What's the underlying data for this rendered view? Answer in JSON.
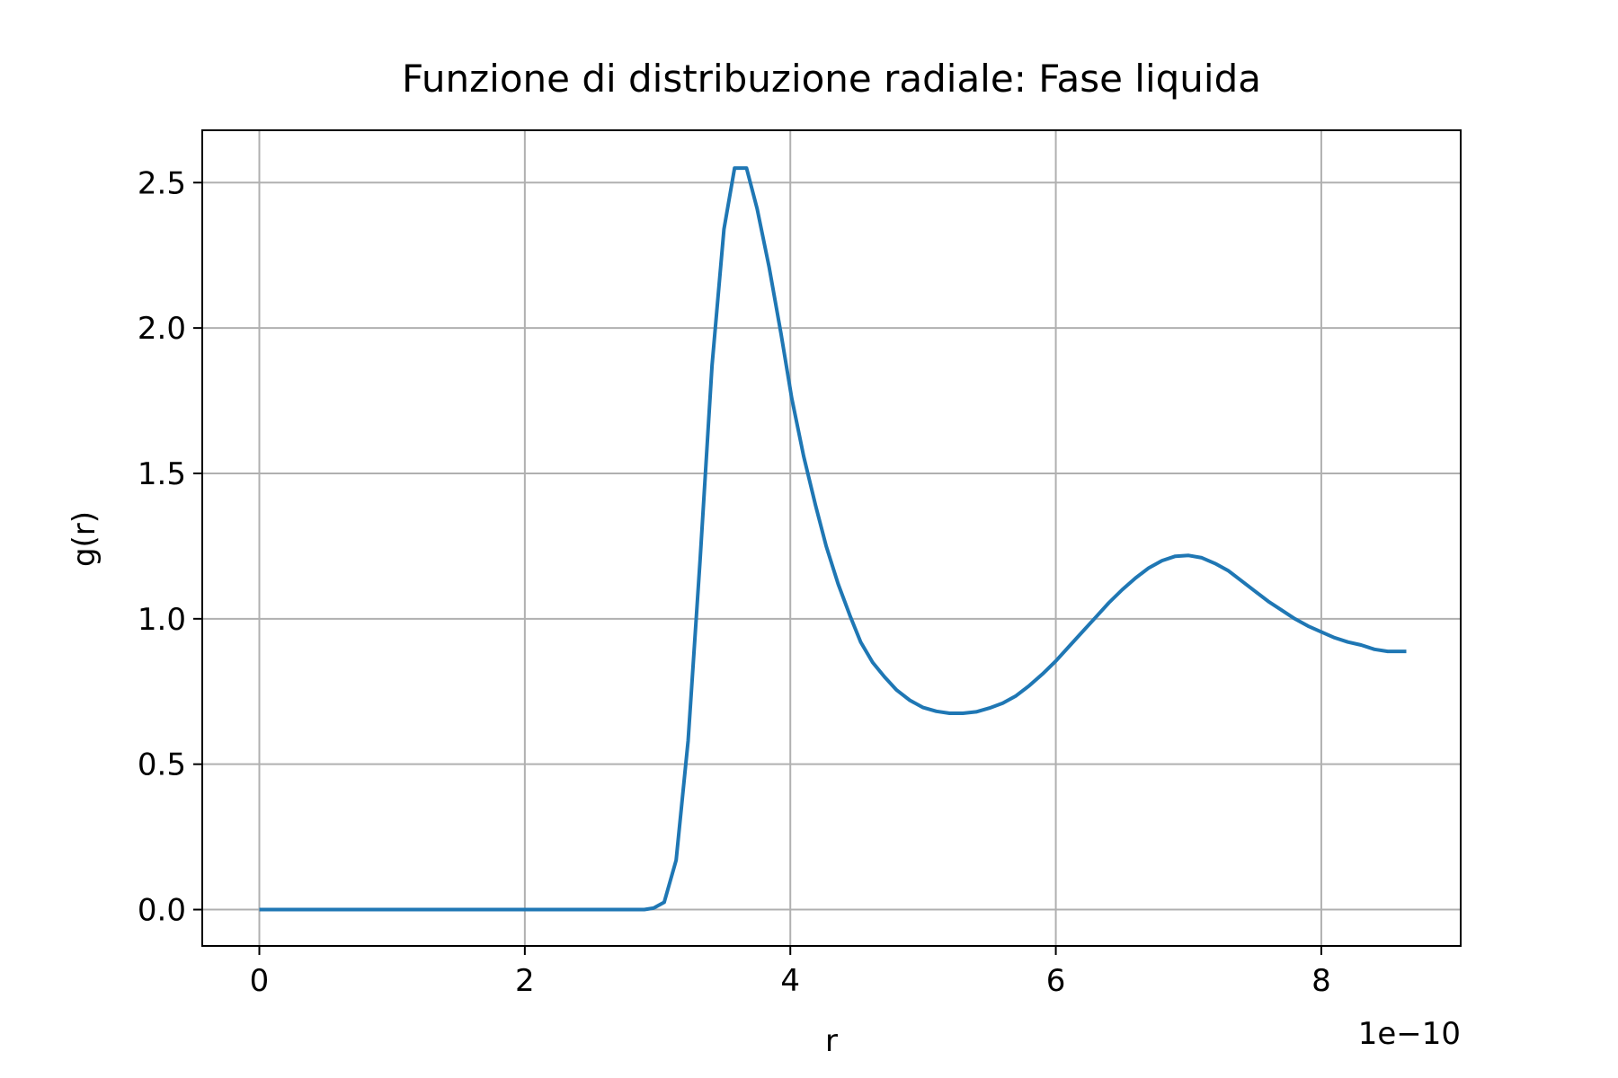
{
  "chart_data": {
    "type": "line",
    "title": "Funzione di distribuzione radiale: Fase liquida",
    "xlabel": "r",
    "ylabel": "g(r)",
    "x_offset_label": "1e−10",
    "x_ticks": [
      "0",
      "2",
      "4",
      "6",
      "8"
    ],
    "y_ticks": [
      "0.0",
      "0.5",
      "1.0",
      "1.5",
      "2.0",
      "2.5"
    ],
    "xlim": [
      -0.43,
      9.05
    ],
    "ylim": [
      -0.125,
      2.68
    ],
    "grid": true,
    "line_color": "#1f77b4",
    "grid_color": "#b0b0b0",
    "series": [
      {
        "x": [
          0,
          0.5,
          1.0,
          1.5,
          2.0,
          2.5,
          2.9,
          2.97,
          3.05,
          3.14,
          3.23,
          3.32,
          3.41,
          3.5,
          3.58,
          3.67,
          3.75,
          3.84,
          3.93,
          4.01,
          4.1,
          4.19,
          4.27,
          4.36,
          4.45,
          4.53,
          4.62,
          4.71,
          4.8,
          4.9,
          5.0,
          5.1,
          5.2,
          5.3,
          5.4,
          5.5,
          5.6,
          5.7,
          5.8,
          5.9,
          6.0,
          6.1,
          6.2,
          6.3,
          6.4,
          6.5,
          6.6,
          6.7,
          6.8,
          6.9,
          7.0,
          7.1,
          7.2,
          7.3,
          7.4,
          7.5,
          7.6,
          7.7,
          7.8,
          7.9,
          8.0,
          8.1,
          8.2,
          8.3,
          8.4,
          8.5,
          8.64
        ],
        "y": [
          0.0,
          0.0,
          0.0,
          0.0,
          0.0,
          0.0,
          0.0,
          0.005,
          0.025,
          0.17,
          0.58,
          1.2,
          1.87,
          2.34,
          2.55,
          2.55,
          2.41,
          2.21,
          1.98,
          1.76,
          1.56,
          1.39,
          1.25,
          1.12,
          1.01,
          0.92,
          0.85,
          0.8,
          0.755,
          0.72,
          0.695,
          0.682,
          0.675,
          0.675,
          0.68,
          0.693,
          0.71,
          0.735,
          0.77,
          0.81,
          0.855,
          0.905,
          0.955,
          1.005,
          1.055,
          1.1,
          1.14,
          1.175,
          1.2,
          1.215,
          1.218,
          1.21,
          1.19,
          1.165,
          1.13,
          1.095,
          1.06,
          1.03,
          1.0,
          0.975,
          0.955,
          0.935,
          0.92,
          0.91,
          0.895,
          0.888,
          0.888
        ]
      }
    ]
  }
}
